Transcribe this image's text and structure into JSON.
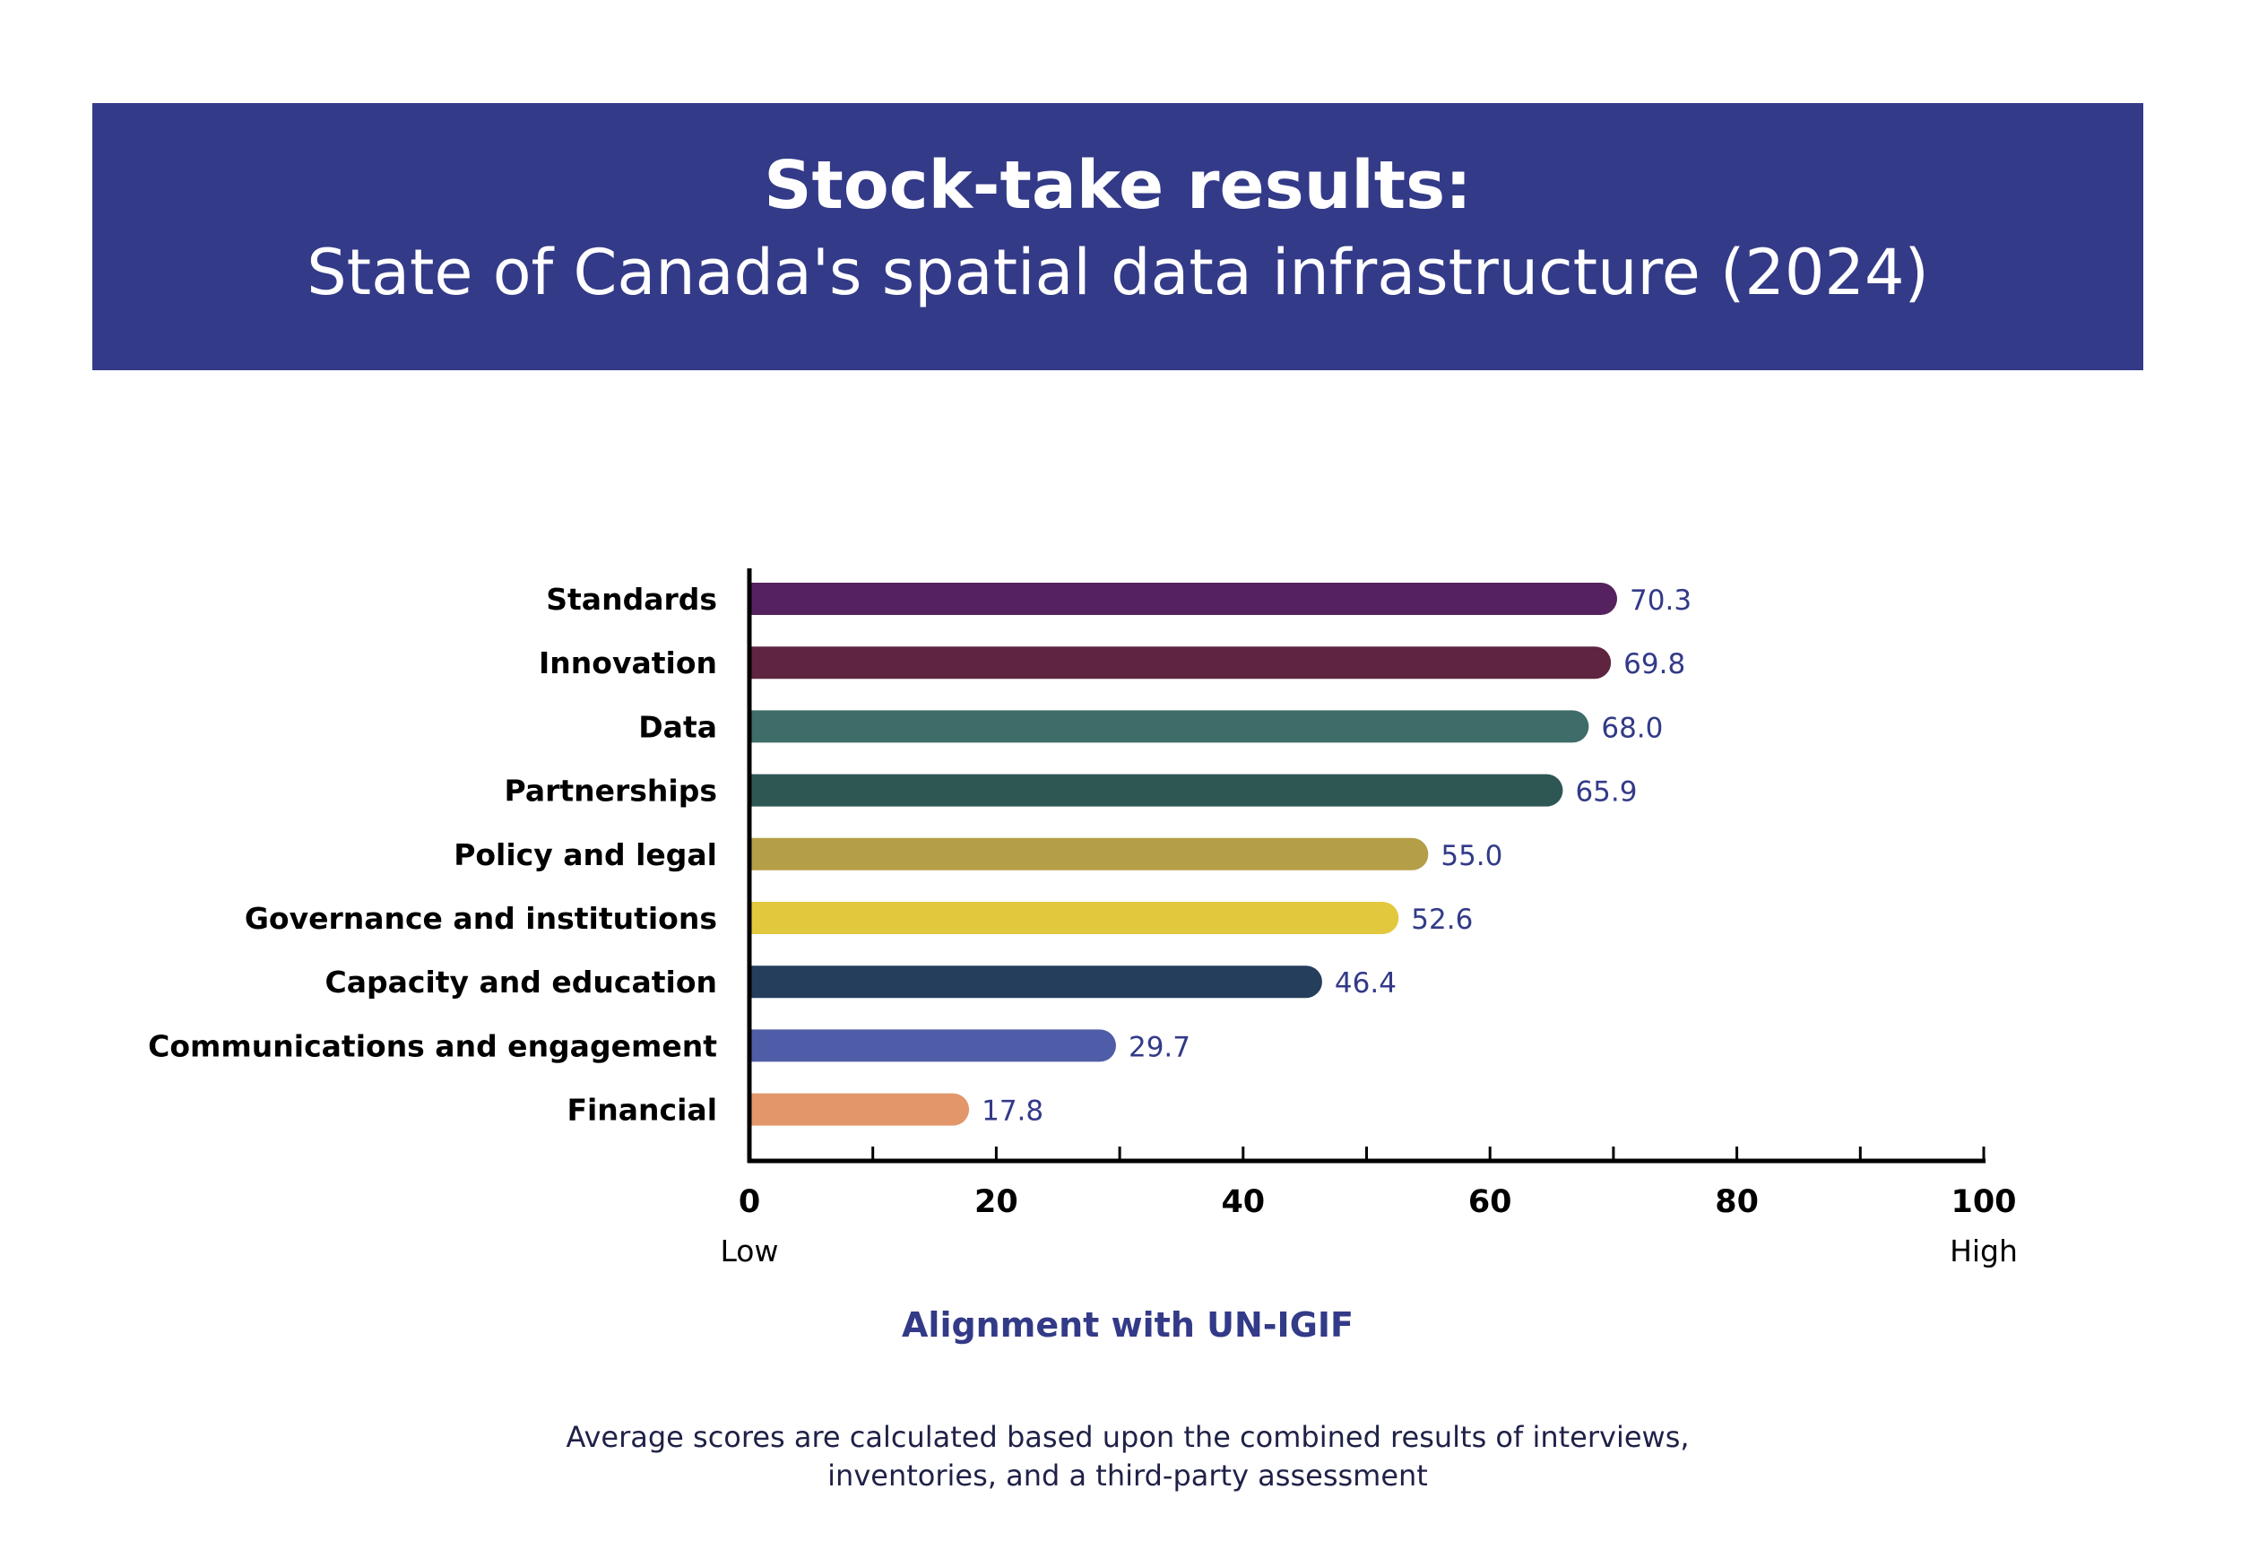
{
  "header": {
    "title": "Stock-take results:",
    "subtitle": "State of Canada's spatial data infrastructure (2024)"
  },
  "colors": {
    "banner": "#333a88",
    "value_label": "#333a88",
    "axis": "#000000"
  },
  "chart_data": {
    "type": "bar",
    "orientation": "horizontal",
    "categories": [
      "Standards",
      "Innovation",
      "Data",
      "Partnerships",
      "Policy and legal",
      "Governance and institutions",
      "Capacity and education",
      "Communications and engagement",
      "Financial"
    ],
    "values": [
      70.3,
      69.8,
      68.0,
      65.9,
      55.0,
      52.6,
      46.4,
      29.7,
      17.8
    ],
    "value_labels": [
      "70.3",
      "69.8",
      "68.0",
      "65.9",
      "55.0",
      "52.6",
      "46.4",
      "29.7",
      "17.8"
    ],
    "bar_colors": [
      "#56215f",
      "#5e2440",
      "#3e6c68",
      "#2e5754",
      "#b59e48",
      "#e2c83c",
      "#253e5c",
      "#4f5da8",
      "#e3966a"
    ],
    "xlim": [
      0,
      100
    ],
    "major_ticks": [
      0,
      20,
      40,
      60,
      80,
      100
    ],
    "minor_ticks": [
      10,
      30,
      50,
      70,
      90
    ],
    "tick_labels": [
      "0",
      "20",
      "40",
      "60",
      "80",
      "100"
    ],
    "axis_end_labels": {
      "low": "Low",
      "high": "High"
    },
    "xlabel": "Alignment with UN-IGIF",
    "ylabel": "",
    "grid": false,
    "legend": "none"
  },
  "footnote": {
    "line1": "Average scores are calculated based upon the combined results of interviews,",
    "line2": "inventories, and a third-party assessment"
  }
}
